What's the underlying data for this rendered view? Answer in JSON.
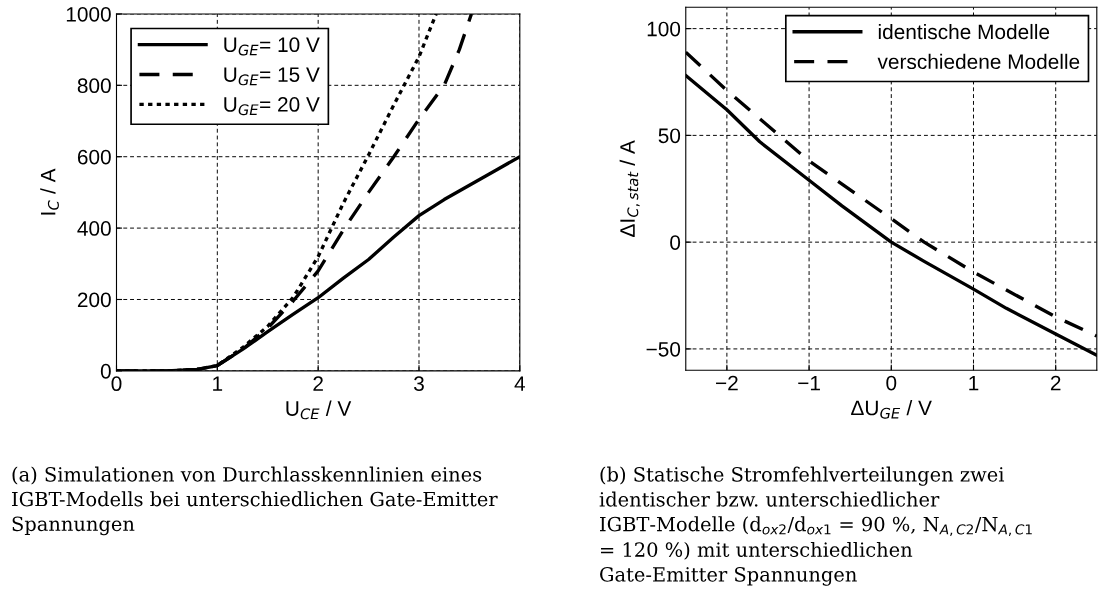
{
  "chart_data": [
    {
      "type": "line",
      "xlabel": "U$_{CE}$ / V",
      "ylabel": "I$_{C}$ / A",
      "xlim": [
        0,
        4
      ],
      "ylim": [
        0,
        1000
      ],
      "xticks": [
        0,
        1,
        2,
        3,
        4
      ],
      "yticks": [
        0,
        200,
        400,
        600,
        800,
        1000
      ],
      "grid": true,
      "legend": "top left",
      "marker": "none",
      "series": [
        {
          "name": "U$_{GE}$= 10 V",
          "color": "#000000",
          "line_style": "solid",
          "x": [
            0,
            0.5,
            0.8,
            1,
            1.25,
            1.5,
            1.75,
            2,
            2.25,
            2.5,
            2.75,
            3,
            3.25,
            3.5,
            3.75,
            4
          ],
          "values": [
            0,
            0,
            4,
            15,
            60,
            110,
            158,
            205,
            260,
            312,
            375,
            435,
            480,
            520,
            560,
            600
          ]
        },
        {
          "name": "U$_{GE}$= 15 V",
          "color": "#000000",
          "line_style": "dashed",
          "x": [
            0,
            0.5,
            0.8,
            1,
            1.25,
            1.5,
            1.75,
            2,
            2.25,
            2.5,
            2.75,
            3,
            3.25,
            3.4,
            3.52
          ],
          "values": [
            0,
            0,
            4,
            15,
            60,
            120,
            195,
            280,
            395,
            500,
            600,
            705,
            800,
            900,
            1000
          ]
        },
        {
          "name": "U$_{GE}$= 20 V",
          "color": "#000000",
          "line_style": "dotted",
          "x": [
            0,
            0.5,
            0.8,
            1,
            1.25,
            1.5,
            1.75,
            2,
            2.25,
            2.5,
            2.75,
            3,
            3.17
          ],
          "values": [
            0,
            0,
            4,
            15,
            65,
            125,
            205,
            320,
            470,
            605,
            745,
            880,
            1000
          ]
        }
      ],
      "annotations": [
        "(a) Simulationen von Durchlasskennlinien eines IGBT-Modells bei unterschiedlichen Gate-Emitter Spannungen"
      ]
    },
    {
      "type": "line",
      "xlabel": "ΔU$_{GE}$ / V",
      "ylabel": "ΔI$_{C,stat}$ / A",
      "xlim": [
        -2.5,
        2.5
      ],
      "ylim": [
        -60,
        110
      ],
      "xticks": [
        {
          "value": -2,
          "label": "−2"
        },
        {
          "value": -1,
          "label": "−1"
        },
        0,
        1,
        2
      ],
      "yticks": [
        {
          "value": -50,
          "label": "−50"
        },
        0,
        50,
        100
      ],
      "grid": true,
      "legend": "top right",
      "marker": "none",
      "series": [
        {
          "name": "identische Modelle",
          "color": "#000000",
          "line_style": "solid",
          "x": [
            -2.5,
            -2,
            -1.6,
            -1,
            -0.6,
            0,
            0.4,
            1,
            1.4,
            2,
            2.5
          ],
          "values": [
            78,
            62,
            47,
            29,
            17,
            0,
            -9,
            -22,
            -31,
            -43,
            -53
          ]
        },
        {
          "name": "verschiedene Modelle",
          "color": "#000000",
          "line_style": "dashed",
          "x": [
            -2.5,
            -2,
            -1,
            0,
            0.4,
            1,
            2,
            2.5
          ],
          "values": [
            89,
            71,
            38,
            11,
            0,
            -14,
            -35,
            -44
          ]
        }
      ],
      "annotations": [
        "(b) Statische Stromfehlverteilungen zwei identischer bzw. unterschiedlicher IGBT-Modelle (d$_{ox2}$/d$_{ox1}$ = 90 %, N$_{A,C2}$/N$_{A,C1}$ = 120 %) mit unterschiedlichen Gate-Emitter Spannungen"
      ]
    }
  ]
}
